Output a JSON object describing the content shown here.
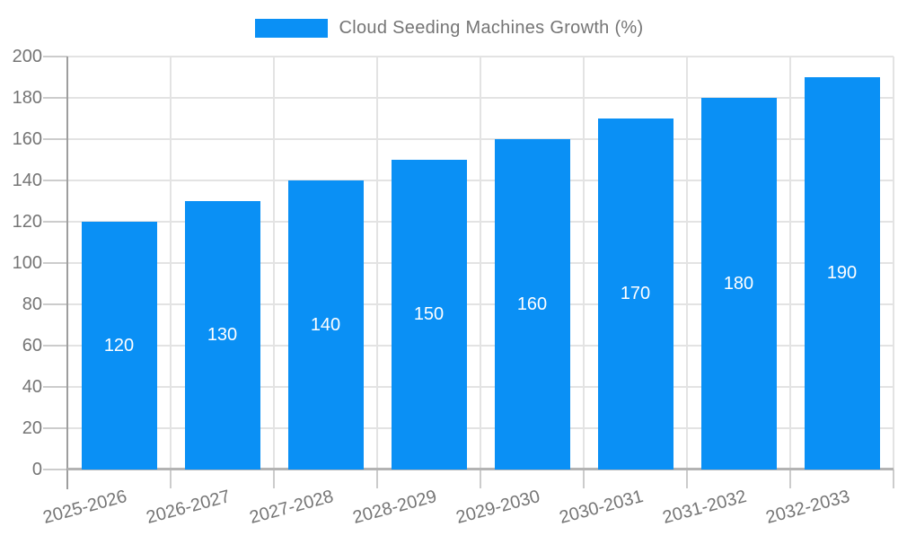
{
  "legend": {
    "label": "Cloud Seeding Machines Growth (%)"
  },
  "chart_data": {
    "type": "bar",
    "title": "Cloud Seeding Machines Growth (%)",
    "categories": [
      "2025-2026",
      "2026-2027",
      "2027-2028",
      "2028-2029",
      "2029-2030",
      "2030-2031",
      "2031-2032",
      "2032-2033"
    ],
    "values": [
      120,
      130,
      140,
      150,
      160,
      170,
      180,
      190
    ],
    "xlabel": "",
    "ylabel": "",
    "ylim": [
      0,
      200
    ],
    "ytick_step": 20,
    "yticks": [
      0,
      20,
      40,
      60,
      80,
      100,
      120,
      140,
      160,
      180,
      200
    ],
    "grid": true,
    "legend_position": "top-center",
    "x_label_rotation_deg": -15,
    "bar_color": "#0A90F5",
    "value_label_color": "#FFFFFF",
    "axis_text_color": "#757575",
    "gridline_color": "#E3E3E3",
    "tick_color": "#CCCCCC",
    "y_axis_line_color": "#9E9E9E",
    "x_axis_line_color": "#B3B3B3"
  }
}
